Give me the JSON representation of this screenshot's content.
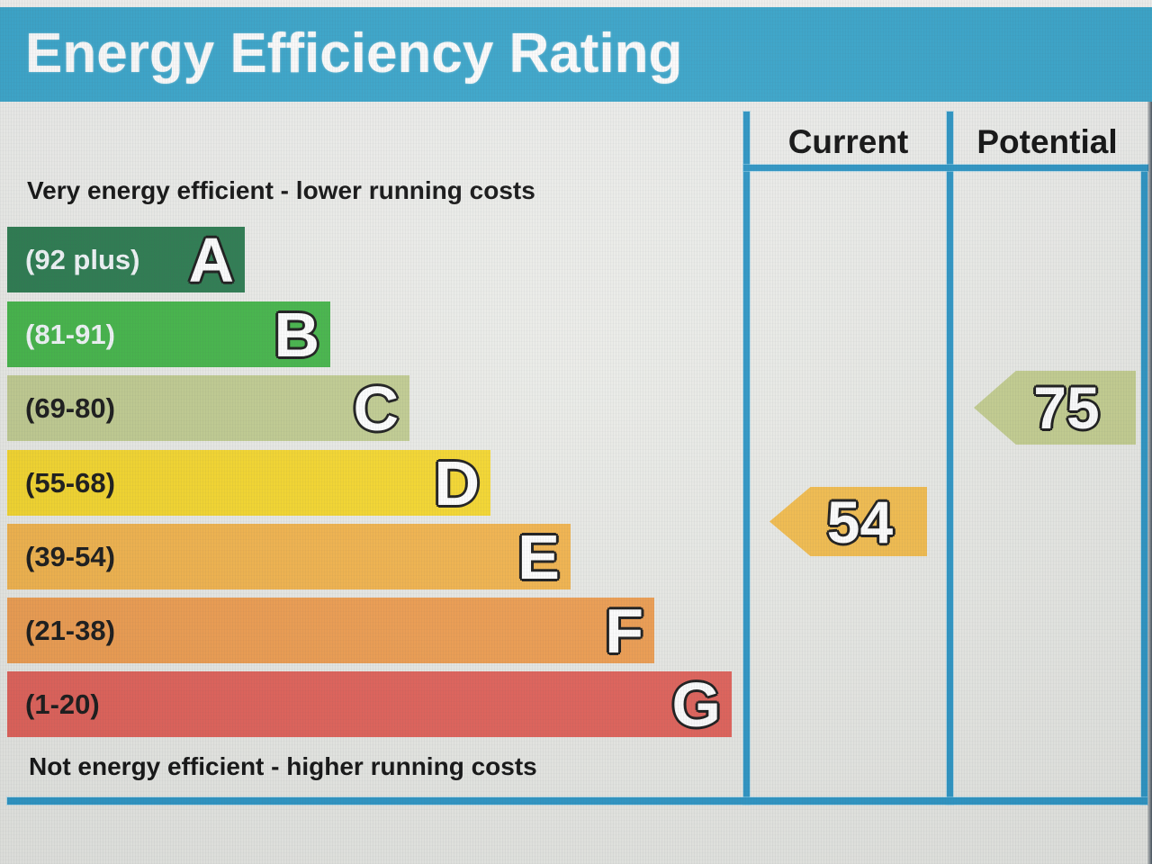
{
  "title": "Energy Efficiency Rating",
  "captions": {
    "top": "Very energy efficient - lower running costs",
    "bottom": "Not energy efficient - higher running costs"
  },
  "columns": {
    "current": "Current",
    "potential": "Potential"
  },
  "bands": [
    {
      "letter": "A",
      "range": "(92 plus)",
      "color": "#2e7d52",
      "label_color": "#f2f7f9"
    },
    {
      "letter": "B",
      "range": "(81-91)",
      "color": "#46b64b",
      "label_color": "#f2f7f9"
    },
    {
      "letter": "C",
      "range": "(69-80)",
      "color": "#c1cc92",
      "label_color": "#1c1c1c"
    },
    {
      "letter": "D",
      "range": "(55-68)",
      "color": "#f5d72f",
      "label_color": "#1c1c1c"
    },
    {
      "letter": "E",
      "range": "(39-54)",
      "color": "#f2b44e",
      "label_color": "#1c1c1c"
    },
    {
      "letter": "F",
      "range": "(21-38)",
      "color": "#ee9e52",
      "label_color": "#1c1c1c"
    },
    {
      "letter": "G",
      "range": "(1-20)",
      "color": "#e1635b",
      "label_color": "#1c1c1c"
    }
  ],
  "ratings": {
    "current": {
      "value": "54",
      "band": "E",
      "color": "#f3bd4f"
    },
    "potential": {
      "value": "75",
      "band": "C",
      "color": "#c5cf92"
    }
  },
  "theme": {
    "header_blue": "#3da8cd",
    "line_blue": "#2f97c6",
    "title_text": "#ffffff",
    "caption_text": "#151515"
  },
  "chart_data": {
    "type": "bar",
    "title": "Energy Efficiency Rating",
    "categories": [
      "A",
      "B",
      "C",
      "D",
      "E",
      "F",
      "G"
    ],
    "band_ranges": [
      "92 plus",
      "81-91",
      "69-80",
      "55-68",
      "39-54",
      "21-38",
      "1-20"
    ],
    "band_colors": [
      "#2e7d52",
      "#46b64b",
      "#c1cc92",
      "#f5d72f",
      "#f2b44e",
      "#ee9e52",
      "#e1635b"
    ],
    "scale": [
      1,
      100
    ],
    "series": [
      {
        "name": "Current",
        "value": 54,
        "band": "E"
      },
      {
        "name": "Potential",
        "value": 75,
        "band": "C"
      }
    ],
    "annotations": [
      "Very energy efficient - lower running costs",
      "Not energy efficient - higher running costs"
    ],
    "legend_position": "top-right-columns",
    "grid": false
  }
}
